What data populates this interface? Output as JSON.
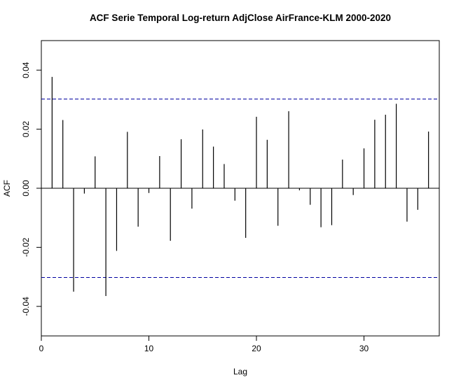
{
  "chart_data": {
    "type": "bar",
    "title": "ACF Serie Temporal Log-return AdjClose AirFrance-KLM 2000-2020",
    "xlabel": "Lag",
    "ylabel": "ACF",
    "xlim": [
      0,
      37
    ],
    "ylim": [
      -0.05,
      0.05
    ],
    "x_ticks": [
      0,
      10,
      20,
      30
    ],
    "x_tick_labels": [
      "0",
      "10",
      "20",
      "30"
    ],
    "y_ticks": [
      -0.04,
      -0.02,
      0.0,
      0.02,
      0.04
    ],
    "y_tick_labels": [
      "-0.04",
      "-0.02",
      "0.00",
      "0.02",
      "0.04"
    ],
    "confidence_band": [
      -0.0302,
      0.0302
    ],
    "zero_line": 0,
    "grid": false,
    "lags": [
      1,
      2,
      3,
      4,
      5,
      6,
      7,
      8,
      9,
      10,
      11,
      12,
      13,
      14,
      15,
      16,
      17,
      18,
      19,
      20,
      21,
      22,
      23,
      24,
      25,
      26,
      27,
      28,
      29,
      30,
      31,
      32,
      33,
      34,
      35,
      36
    ],
    "values": [
      0.0377,
      0.0231,
      -0.035,
      -0.0018,
      0.0108,
      -0.0365,
      -0.0212,
      0.0191,
      -0.013,
      -0.0016,
      0.0109,
      -0.0178,
      0.0166,
      -0.0069,
      0.0199,
      0.0141,
      0.0082,
      -0.0042,
      -0.0168,
      0.0242,
      0.0164,
      -0.0127,
      0.0261,
      -0.0007,
      -0.0056,
      -0.0132,
      -0.0125,
      0.0097,
      -0.0023,
      0.0135,
      0.0232,
      0.0249,
      0.0286,
      -0.0113,
      -0.0073,
      0.0192
    ],
    "colors": {
      "bars": "#000000",
      "band": "#0000a0",
      "axis": "#000000"
    }
  }
}
